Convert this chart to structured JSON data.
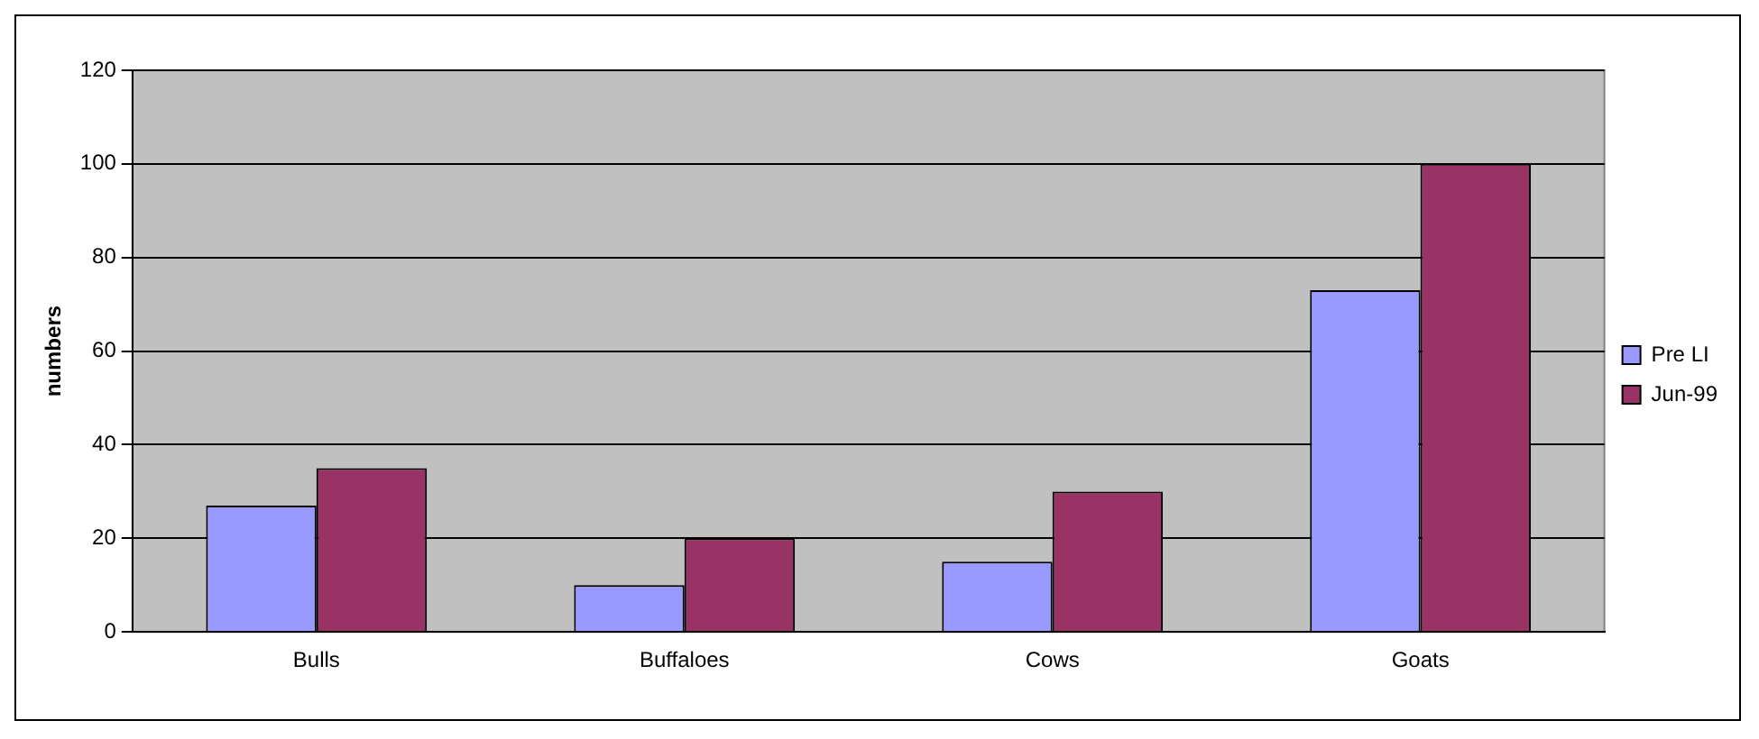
{
  "chart_data": {
    "type": "bar",
    "ylabel": "numbers",
    "categories": [
      "Bulls",
      "Buffaloes",
      "Cows",
      "Goats"
    ],
    "series": [
      {
        "name": "Pre LI",
        "color": "#9999ff",
        "values": [
          27,
          10,
          15,
          73
        ]
      },
      {
        "name": "Jun-99",
        "color": "#993366",
        "values": [
          35,
          20,
          30,
          100
        ]
      }
    ],
    "ylim": [
      0,
      120
    ],
    "yticks": [
      0,
      20,
      40,
      60,
      80,
      100,
      120
    ],
    "grid": "y",
    "legend": "right"
  }
}
